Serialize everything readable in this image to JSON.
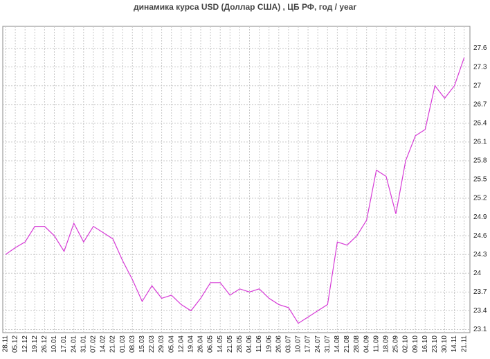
{
  "chart_data": {
    "type": "line",
    "title": "динамика курса USD (Доллар США) , ЦБ РФ, год / year",
    "categories": [
      "28.11",
      "05.12",
      "12.12",
      "19.12",
      "26.12",
      "10.01",
      "17.01",
      "24.01",
      "31.01",
      "07.02",
      "14.02",
      "21.02",
      "01.03",
      "08.03",
      "15.03",
      "22.03",
      "29.03",
      "05.04",
      "12.04",
      "19.04",
      "26.04",
      "06.05",
      "14.05",
      "21.05",
      "28.05",
      "04.06",
      "11.06",
      "19.06",
      "26.06",
      "03.07",
      "10.07",
      "17.07",
      "24.07",
      "31.07",
      "14.08",
      "21.08",
      "28.08",
      "04.09",
      "11.09",
      "18.09",
      "25.09",
      "02.10",
      "09.10",
      "16.10",
      "23.10",
      "30.10",
      "14.11",
      "21.11"
    ],
    "series": [
      {
        "name": "USD",
        "color": "#d63ad6",
        "values": [
          24.3,
          24.41,
          24.5,
          24.75,
          24.75,
          24.6,
          24.35,
          24.8,
          24.5,
          24.75,
          24.65,
          24.55,
          24.2,
          23.9,
          23.55,
          23.8,
          23.6,
          23.65,
          23.5,
          23.4,
          23.6,
          23.85,
          23.85,
          23.65,
          23.75,
          23.7,
          23.75,
          23.6,
          23.5,
          23.45,
          23.2,
          23.3,
          23.4,
          23.5,
          24.5,
          24.45,
          24.6,
          24.85,
          25.65,
          25.55,
          24.95,
          25.8,
          26.2,
          26.3,
          27.0,
          26.8,
          27.0,
          27.45
        ]
      }
    ],
    "ylim": [
      23.05,
      27.95
    ],
    "yticks": [
      23.1,
      23.4,
      23.7,
      {
        "value": 24,
        "label": "24"
      },
      24.3,
      24.6,
      24.9,
      25.2,
      25.5,
      25.8,
      26.1,
      26.4,
      26.7,
      {
        "value": 27,
        "label": "27"
      },
      27.3,
      27.6
    ],
    "grid": true
  }
}
